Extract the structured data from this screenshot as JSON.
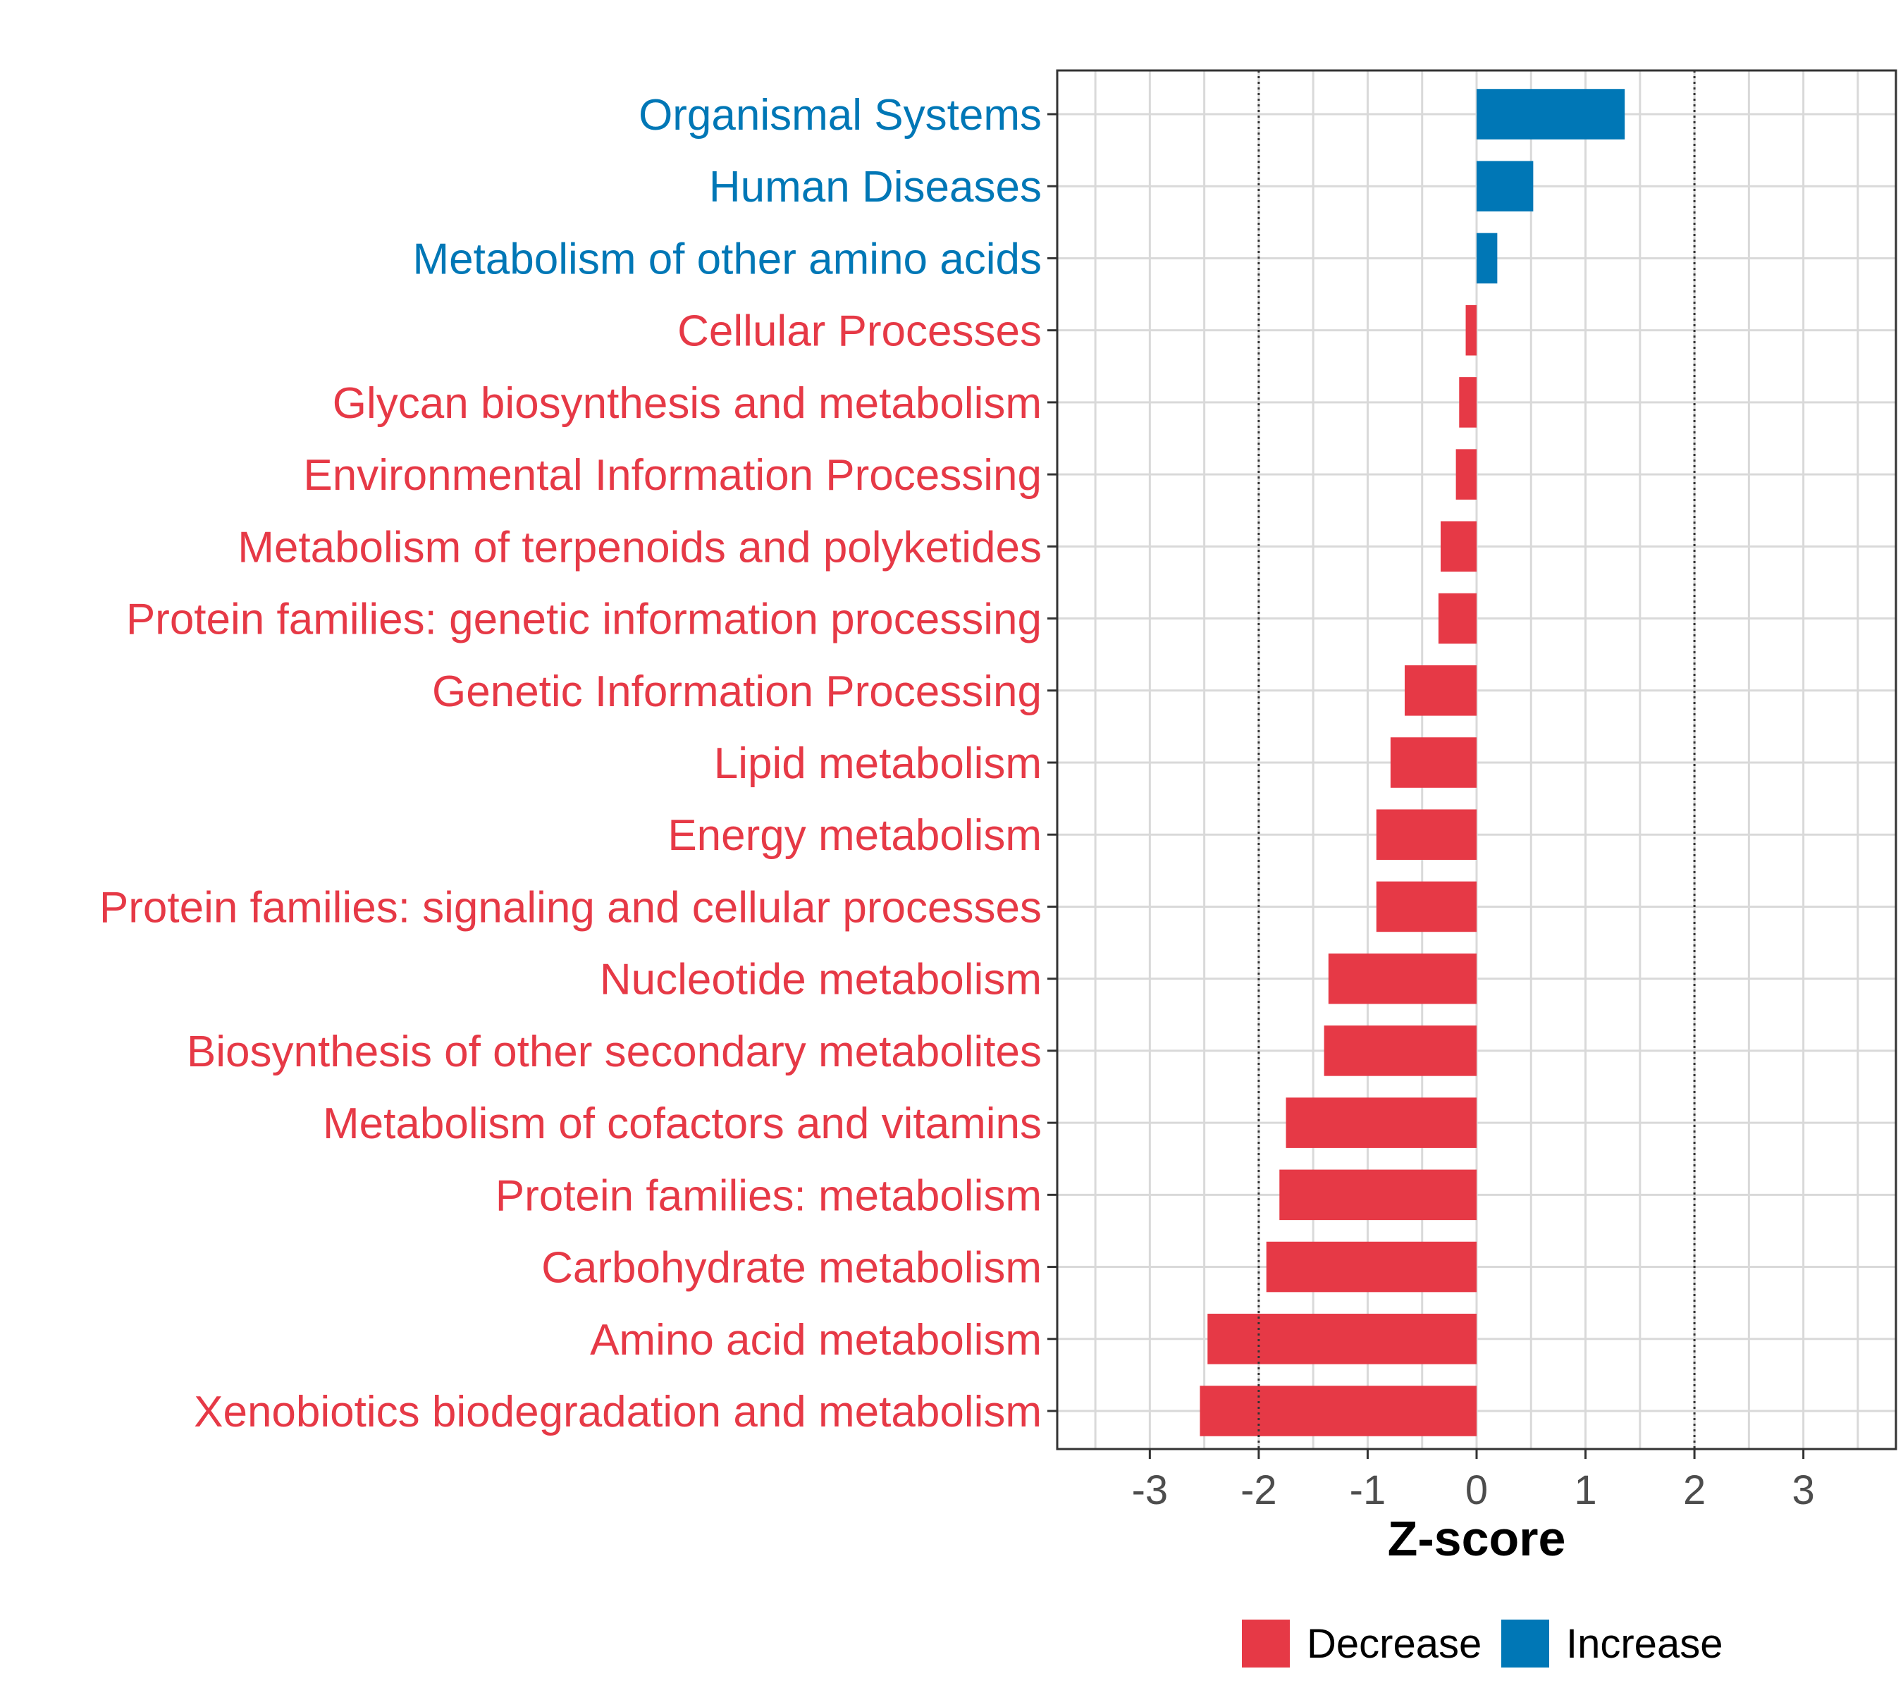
{
  "chart_data": {
    "type": "bar",
    "orientation": "horizontal",
    "xlabel": "Z-score",
    "xlim": [
      -3.85,
      3.85
    ],
    "x_ticks": [
      -3,
      -2,
      -1,
      0,
      1,
      2,
      3
    ],
    "threshold_lines": [
      -2,
      2
    ],
    "grid": true,
    "legend_position": "bottom",
    "colors": {
      "Decrease": "#e63946",
      "Increase": "#0077b6"
    },
    "categories": [
      "Organismal Systems",
      "Human Diseases",
      "Metabolism of other amino acids",
      "Cellular Processes",
      "Glycan biosynthesis and metabolism",
      "Environmental Information Processing",
      "Metabolism of terpenoids and polyketides",
      "Protein families: genetic information processing",
      "Genetic Information Processing",
      "Lipid metabolism",
      "Energy metabolism",
      "Protein families: signaling and cellular processes",
      "Nucleotide metabolism",
      "Biosynthesis of other secondary metabolites",
      "Metabolism of cofactors and vitamins",
      "Protein families: metabolism",
      "Carbohydrate metabolism",
      "Amino acid metabolism",
      "Xenobiotics biodegradation and metabolism"
    ],
    "values": [
      1.36,
      0.52,
      0.19,
      -0.1,
      -0.16,
      -0.19,
      -0.33,
      -0.35,
      -0.66,
      -0.79,
      -0.92,
      -0.92,
      -1.36,
      -1.4,
      -1.75,
      -1.81,
      -1.93,
      -2.47,
      -2.54
    ],
    "direction": [
      "Increase",
      "Increase",
      "Increase",
      "Decrease",
      "Decrease",
      "Decrease",
      "Decrease",
      "Decrease",
      "Decrease",
      "Decrease",
      "Decrease",
      "Decrease",
      "Decrease",
      "Decrease",
      "Decrease",
      "Decrease",
      "Decrease",
      "Decrease",
      "Decrease"
    ],
    "legend": [
      "Decrease",
      "Increase"
    ]
  }
}
